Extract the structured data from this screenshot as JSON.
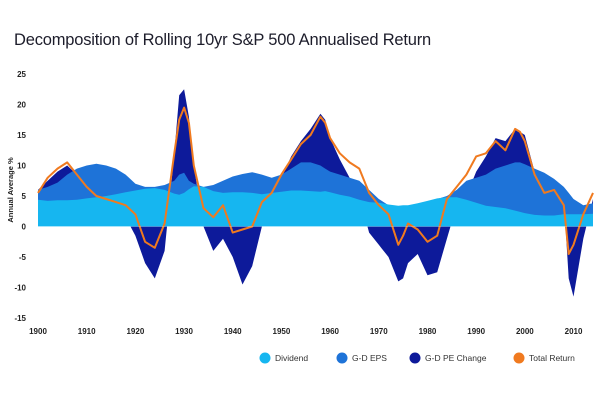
{
  "chart_data": {
    "type": "area",
    "title": "Decomposition of Rolling 10yr S&P 500 Annualised Return",
    "xlabel": "",
    "ylabel": "Annual Average %",
    "xlim": [
      1900,
      2014
    ],
    "ylim": [
      -15,
      25
    ],
    "xticks": [
      1900,
      1910,
      1920,
      1930,
      1940,
      1950,
      1960,
      1970,
      1980,
      1990,
      2000,
      2010
    ],
    "yticks": [
      25,
      20,
      15,
      10,
      5,
      0,
      -5,
      -10,
      -15
    ],
    "legend_position": "bottom-right",
    "x": [
      1900,
      1902,
      1904,
      1906,
      1908,
      1910,
      1912,
      1914,
      1916,
      1918,
      1920,
      1922,
      1924,
      1926,
      1928,
      1929,
      1930,
      1931,
      1932,
      1934,
      1936,
      1938,
      1940,
      1942,
      1944,
      1946,
      1948,
      1950,
      1952,
      1954,
      1956,
      1958,
      1959,
      1960,
      1962,
      1964,
      1966,
      1968,
      1970,
      1972,
      1974,
      1975,
      1976,
      1978,
      1980,
      1982,
      1984,
      1986,
      1988,
      1990,
      1992,
      1994,
      1996,
      1998,
      1999,
      2000,
      2002,
      2004,
      2006,
      2008,
      2009,
      2010,
      2012,
      2014
    ],
    "series": [
      {
        "name": "Dividend",
        "color": "#16b6f0",
        "values": [
          4.4,
          4.2,
          4.3,
          4.3,
          4.4,
          4.6,
          4.8,
          5.0,
          5.3,
          5.6,
          5.9,
          6.2,
          6.3,
          6.0,
          5.4,
          5.2,
          5.5,
          6.1,
          6.6,
          6.5,
          5.8,
          5.5,
          5.6,
          5.6,
          5.5,
          5.3,
          5.5,
          5.7,
          5.9,
          5.9,
          5.8,
          5.7,
          5.8,
          5.6,
          5.2,
          4.9,
          4.4,
          4.0,
          3.9,
          3.6,
          3.4,
          3.5,
          3.5,
          3.8,
          4.2,
          4.6,
          4.8,
          4.8,
          4.4,
          3.9,
          3.4,
          3.2,
          3.0,
          2.6,
          2.4,
          2.2,
          1.9,
          1.8,
          1.8,
          2.0,
          2.0,
          2.0,
          2.0,
          2.1
        ]
      },
      {
        "name": "G-D EPS",
        "color": "#1e73d8",
        "values": [
          6.0,
          6.5,
          7.2,
          8.5,
          9.5,
          10.0,
          10.3,
          10.0,
          9.5,
          8.5,
          7.0,
          6.5,
          6.5,
          6.8,
          7.5,
          8.5,
          8.8,
          7.5,
          7.0,
          6.5,
          6.8,
          7.5,
          8.2,
          8.6,
          8.9,
          8.5,
          8.0,
          8.5,
          9.5,
          10.5,
          10.5,
          10.0,
          9.5,
          9.0,
          8.5,
          8.0,
          7.5,
          6.0,
          4.5,
          3.5,
          3.0,
          3.0,
          3.2,
          3.5,
          4.0,
          4.5,
          5.0,
          6.0,
          7.5,
          8.0,
          8.5,
          9.5,
          10.0,
          10.5,
          10.5,
          10.2,
          9.5,
          8.8,
          7.8,
          6.5,
          5.5,
          4.5,
          3.5,
          3.8
        ]
      },
      {
        "name": "G-D PE Change",
        "color": "#0d1a9a",
        "values": [
          6.0,
          7.5,
          9.0,
          10.0,
          8.5,
          6.0,
          4.0,
          2.5,
          2.0,
          1.5,
          -1.5,
          -6.0,
          -8.5,
          -4.0,
          12.0,
          21.5,
          22.5,
          18.0,
          10.0,
          0.0,
          -4.0,
          -2.0,
          -5.0,
          -9.5,
          -6.5,
          0.0,
          3.0,
          8.0,
          11.5,
          14.0,
          16.0,
          18.5,
          17.5,
          14.5,
          11.0,
          8.0,
          5.0,
          -1.0,
          -3.0,
          -5.0,
          -9.0,
          -8.5,
          -6.0,
          -4.5,
          -8.0,
          -7.5,
          -2.0,
          3.5,
          5.0,
          9.0,
          11.5,
          14.5,
          14.0,
          16.0,
          15.5,
          15.0,
          9.0,
          6.0,
          6.5,
          4.5,
          -8.5,
          -11.5,
          -2.0,
          4.5
        ]
      },
      {
        "name": "Total Return",
        "color": "#f07a1f",
        "values": [
          5.5,
          8.0,
          9.5,
          10.5,
          8.5,
          6.5,
          5.0,
          4.5,
          4.0,
          3.5,
          2.0,
          -2.5,
          -3.5,
          0.5,
          12.0,
          17.5,
          19.5,
          17.0,
          10.0,
          3.0,
          1.5,
          3.5,
          -1.0,
          -0.5,
          0.0,
          4.0,
          5.5,
          8.5,
          11.0,
          13.5,
          15.0,
          18.0,
          17.0,
          14.5,
          12.0,
          10.5,
          9.5,
          5.5,
          3.5,
          2.0,
          -3.0,
          -1.5,
          0.5,
          -0.5,
          -2.5,
          -1.5,
          4.5,
          6.5,
          8.5,
          11.5,
          12.0,
          14.0,
          12.5,
          16.0,
          15.5,
          14.0,
          8.5,
          5.5,
          6.0,
          3.5,
          -4.5,
          -3.0,
          2.0,
          5.5
        ]
      }
    ]
  }
}
